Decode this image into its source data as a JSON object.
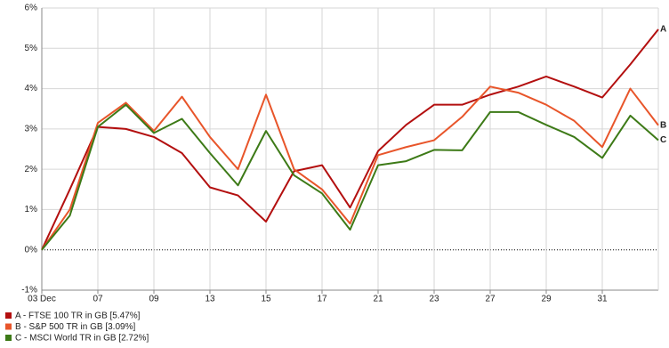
{
  "chart_data": {
    "type": "line",
    "categories": [
      "03 Dec",
      null,
      "07",
      null,
      "09",
      null,
      "13",
      null,
      "15",
      null,
      "17",
      null,
      "21",
      null,
      "23",
      null,
      "27",
      null,
      "29",
      null,
      "31",
      null,
      null
    ],
    "series": [
      {
        "name": "A - FTSE 100 TR in GB [5.47%]",
        "end_label": "A",
        "color": "#b30f0f",
        "values": [
          0,
          1.5,
          3.05,
          3.0,
          2.8,
          2.4,
          1.55,
          1.35,
          0.7,
          1.95,
          2.1,
          1.05,
          2.45,
          3.1,
          3.6,
          3.6,
          3.85,
          4.05,
          4.3,
          4.05,
          3.78,
          4.6,
          5.47
        ]
      },
      {
        "name": "B - S&P 500 TR in GB [3.09%]",
        "end_label": "B",
        "color": "#e8552a",
        "values": [
          0,
          1.0,
          3.15,
          3.65,
          2.95,
          3.8,
          2.8,
          2.0,
          3.85,
          2.0,
          1.5,
          0.65,
          2.35,
          2.55,
          2.72,
          3.3,
          4.05,
          3.9,
          3.6,
          3.2,
          2.55,
          4.0,
          3.09
        ]
      },
      {
        "name": "C - MSCI World TR in GB [2.72%]",
        "end_label": "C",
        "color": "#3d7a17",
        "values": [
          0,
          0.85,
          3.05,
          3.6,
          2.9,
          3.25,
          2.4,
          1.6,
          2.95,
          1.85,
          1.4,
          0.5,
          2.1,
          2.2,
          2.48,
          2.47,
          3.42,
          3.42,
          3.1,
          2.8,
          2.28,
          3.33,
          2.72
        ]
      }
    ],
    "ylim": [
      -1,
      6
    ],
    "yticks": [
      {
        "value": -1,
        "label": "-1%"
      },
      {
        "value": 0,
        "label": "0%"
      },
      {
        "value": 1,
        "label": "1%"
      },
      {
        "value": 2,
        "label": "2%"
      },
      {
        "value": 3,
        "label": "3%"
      },
      {
        "value": 4,
        "label": "4%"
      },
      {
        "value": 5,
        "label": "5%"
      },
      {
        "value": 6,
        "label": "6%"
      }
    ],
    "grid": true
  }
}
